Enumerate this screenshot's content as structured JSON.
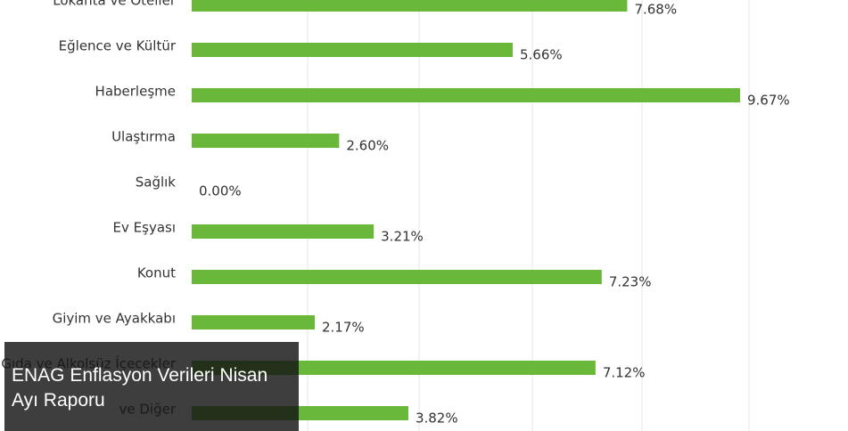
{
  "chart_data": {
    "type": "hbar",
    "categories": [
      "Lokanta ve Oteller",
      "Eğlence ve Kültür",
      "Haberleşme",
      "Ulaştırma",
      "Sağlık",
      "Ev Eşyası",
      "Konut",
      "Giyim ve Ayakkabı",
      "Gıda ve Alkolsüz İçecekler",
      "ve Diğer"
    ],
    "values": [
      7.68,
      5.66,
      9.67,
      2.6,
      0.0,
      3.21,
      7.23,
      2.17,
      7.12,
      3.82
    ],
    "value_labels": [
      "7.68%",
      "5.66%",
      "9.67%",
      "2.60%",
      "0.00%",
      "3.21%",
      "7.23%",
      "2.17%",
      "7.12%",
      "3.82%"
    ],
    "color": "#6ab83a",
    "xlim": [
      0,
      10
    ]
  },
  "caption": "ENAG Enflasyon Verileri Nisan Ayı Raporu"
}
